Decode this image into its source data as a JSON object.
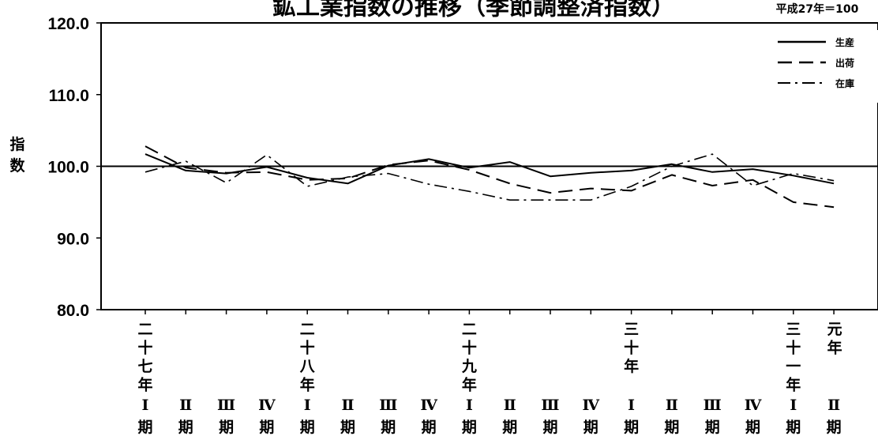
{
  "chart_data": {
    "type": "line",
    "title": "鉱工業指数の推移（季節調整済指数）",
    "base_note": "平成27年＝100",
    "ylabel": "指数",
    "ylim": [
      80,
      120
    ],
    "yticks": [
      "120.0",
      "110.0",
      "100.0",
      "90.0",
      "80.0"
    ],
    "reference_line": 100,
    "grid": false,
    "legend_position": "top-right",
    "year_labels": [
      "二十七年",
      "",
      "",
      "",
      "二十八年",
      "",
      "",
      "",
      "二十九年",
      "",
      "",
      "",
      "三十年",
      "",
      "",
      "",
      "三十一年",
      "元年"
    ],
    "quarter_labels": [
      "Ⅰ期",
      "Ⅱ期",
      "Ⅲ期",
      "Ⅳ期",
      "Ⅰ期",
      "Ⅱ期",
      "Ⅲ期",
      "Ⅳ期",
      "Ⅰ期",
      "Ⅱ期",
      "Ⅲ期",
      "Ⅳ期",
      "Ⅰ期",
      "Ⅱ期",
      "Ⅲ期",
      "Ⅳ期",
      "Ⅰ期",
      "Ⅱ期"
    ],
    "series": [
      {
        "name": "生産",
        "style": "solid",
        "values": [
          101.7,
          99.4,
          99.0,
          99.9,
          98.4,
          97.6,
          100.1,
          101.0,
          99.8,
          100.6,
          98.6,
          99.1,
          99.4,
          100.3,
          99.2,
          99.6,
          98.7,
          97.6
        ]
      },
      {
        "name": "出荷",
        "style": "dash",
        "values": [
          102.8,
          99.8,
          99.1,
          99.2,
          98.1,
          98.3,
          100.2,
          100.8,
          99.5,
          97.6,
          96.3,
          96.9,
          96.6,
          98.8,
          97.3,
          98.1,
          95.0,
          94.3
        ]
      },
      {
        "name": "在庫",
        "style": "dashdot",
        "values": [
          99.2,
          100.7,
          97.7,
          101.6,
          97.2,
          98.5,
          99.0,
          97.5,
          96.5,
          95.3,
          95.3,
          95.3,
          97.2,
          100.0,
          101.7,
          97.3,
          99.0,
          98.0
        ]
      }
    ]
  }
}
